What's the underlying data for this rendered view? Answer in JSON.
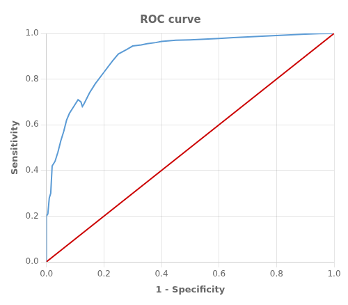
{
  "chart_data": {
    "type": "line",
    "title": "ROC curve",
    "xlabel": "1 - Specificity",
    "ylabel": "Sensitivity",
    "series": [
      {
        "color": "#cc0000",
        "x": [
          0.0,
          1.0
        ],
        "values": [
          0.0,
          1.0
        ]
      },
      {
        "color": "#5b9bd5",
        "x": [
          0.0,
          0.0,
          0.005,
          0.01,
          0.015,
          0.02,
          0.025,
          0.03,
          0.04,
          0.05,
          0.06,
          0.07,
          0.08,
          0.09,
          0.1,
          0.11,
          0.12,
          0.125,
          0.13,
          0.15,
          0.17,
          0.2,
          0.23,
          0.25,
          0.28,
          0.3,
          0.33,
          0.35,
          0.38,
          0.4,
          0.45,
          0.5,
          0.55,
          0.6,
          0.65,
          0.7,
          0.75,
          0.8,
          0.85,
          0.9,
          0.95,
          1.0
        ],
        "values": [
          0.0,
          0.2,
          0.21,
          0.28,
          0.3,
          0.42,
          0.43,
          0.44,
          0.48,
          0.53,
          0.57,
          0.62,
          0.65,
          0.67,
          0.69,
          0.71,
          0.7,
          0.68,
          0.69,
          0.74,
          0.78,
          0.83,
          0.88,
          0.91,
          0.93,
          0.945,
          0.95,
          0.955,
          0.96,
          0.965,
          0.97,
          0.972,
          0.975,
          0.978,
          0.982,
          0.985,
          0.988,
          0.991,
          0.994,
          0.997,
          0.999,
          1.0
        ]
      }
    ],
    "xlim": [
      0.0,
      1.0
    ],
    "ylim": [
      0.0,
      1.0
    ],
    "xticks": [
      {
        "value": 0,
        "label": "0.0"
      },
      0.2,
      0.4,
      0.6,
      0.8,
      {
        "value": 1,
        "label": "1.0"
      }
    ],
    "yticks": [
      {
        "value": 0,
        "label": "0.0"
      },
      0.2,
      0.4,
      0.6,
      0.8,
      {
        "value": 1,
        "label": "1.0"
      }
    ],
    "grid": true
  }
}
